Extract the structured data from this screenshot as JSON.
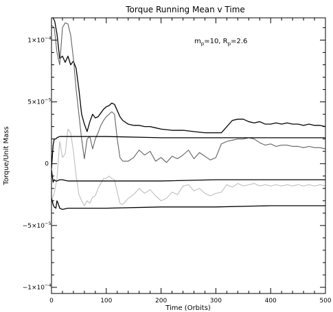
{
  "chart_data": {
    "type": "line",
    "title": "Torque Running Mean v Time",
    "xlabel": "Time (Orbits)",
    "ylabel": "Torque/Unit Mass",
    "xlim": [
      0,
      500
    ],
    "ylim": [
      -0.000105,
      0.000118
    ],
    "grid": false,
    "annotation": {
      "m_label": "m",
      "m_sub": "p",
      "m_value": "=10, R",
      "r_sub": "p",
      "r_value": "=2.6"
    },
    "x_ticks": [
      {
        "value": 0,
        "label": "0"
      },
      {
        "value": 100,
        "label": "100"
      },
      {
        "value": 200,
        "label": "200"
      },
      {
        "value": 300,
        "label": "300"
      },
      {
        "value": 400,
        "label": "400"
      },
      {
        "value": 500,
        "label": "500"
      }
    ],
    "y_ticks": [
      {
        "value": 0.0001,
        "mantissa": "1×10",
        "exp": "−4"
      },
      {
        "value": 5e-05,
        "mantissa": "5×10",
        "exp": "−5"
      },
      {
        "value": 0,
        "mantissa": "0",
        "exp": ""
      },
      {
        "value": -5e-05,
        "mantissa": "−5×10",
        "exp": "−5"
      },
      {
        "value": -0.0001,
        "mantissa": "−1×10",
        "exp": "−4"
      }
    ],
    "series": [
      {
        "color": "#000000",
        "width": 1.3,
        "x": [
          0,
          3,
          6,
          10,
          15,
          20,
          25,
          30,
          35,
          40,
          45,
          50,
          55,
          60,
          65,
          70,
          75,
          80,
          85,
          90,
          95,
          100,
          105,
          110,
          115,
          120,
          125,
          130,
          140,
          150,
          160,
          170,
          180,
          190,
          200,
          220,
          240,
          260,
          280,
          300,
          310,
          320,
          330,
          340,
          350,
          360,
          370,
          380,
          390,
          400,
          410,
          420,
          430,
          440,
          450,
          460,
          470,
          480,
          490,
          500
        ],
        "y": [
          0.000118,
          0.000118,
          0.000115,
          0.000105,
          8.5e-05,
          8.7e-05,
          8.2e-05,
          8.7e-05,
          8e-05,
          8.3e-05,
          7.7e-05,
          6e-05,
          4e-05,
          3.2e-05,
          2.6e-05,
          3.4e-05,
          4e-05,
          3.7e-05,
          3.8e-05,
          4.1e-05,
          4.4e-05,
          4.6e-05,
          4.7e-05,
          4.9e-05,
          4.8e-05,
          4.3e-05,
          3.8e-05,
          3.5e-05,
          3.2e-05,
          3.1e-05,
          3.1e-05,
          3e-05,
          3e-05,
          2.9e-05,
          2.8e-05,
          2.7e-05,
          2.7e-05,
          2.6e-05,
          2.5e-05,
          2.5e-05,
          2.5e-05,
          3e-05,
          3.5e-05,
          3.6e-05,
          3.6e-05,
          3.4e-05,
          3.3e-05,
          3.4e-05,
          3.2e-05,
          3.2e-05,
          3.3e-05,
          3.2e-05,
          3.3e-05,
          3.2e-05,
          3.2e-05,
          3.1e-05,
          3.2e-05,
          3.1e-05,
          3.1e-05,
          3e-05
        ]
      },
      {
        "color": "#606060",
        "width": 1.1,
        "x": [
          0,
          5,
          10,
          15,
          20,
          25,
          30,
          35,
          40,
          45,
          50,
          55,
          60,
          65,
          70,
          75,
          80,
          85,
          90,
          95,
          100,
          105,
          110,
          115,
          120,
          125,
          130,
          140,
          150,
          160,
          170,
          180,
          190,
          200,
          210,
          220,
          230,
          240,
          250,
          260,
          270,
          280,
          290,
          300,
          310,
          320,
          330,
          340,
          350,
          360,
          370,
          380,
          390,
          400,
          410,
          420,
          430,
          440,
          450,
          460,
          470,
          480,
          490,
          500
        ],
        "y": [
          0.000112,
          0.00011,
          9e-05,
          8e-05,
          0.00011,
          0.000114,
          0.000113,
          0.000104,
          8.5e-05,
          6e-05,
          4e-05,
          2e-05,
          4e-06,
          2e-05,
          2.2e-05,
          1.2e-05,
          2e-05,
          2.5e-05,
          3.1e-05,
          3.5e-05,
          3.8e-05,
          4e-05,
          4.2e-05,
          4e-05,
          2e-05,
          5e-06,
          2e-06,
          2e-06,
          5e-06,
          1.1e-05,
          7e-06,
          1e-05,
          2e-06,
          5e-06,
          1e-06,
          6e-06,
          4e-06,
          7e-06,
          1.1e-05,
          4e-06,
          9e-06,
          6e-06,
          3e-06,
          5e-06,
          1.6e-05,
          1.8e-05,
          1.9e-05,
          2e-05,
          2e-05,
          2.1e-05,
          2e-05,
          1.7e-05,
          1.5e-05,
          1.6e-05,
          1.4e-05,
          1.5e-05,
          1.5e-05,
          1.4e-05,
          1.4e-05,
          1.3e-05,
          1.4e-05,
          1.3e-05,
          1.3e-05,
          1.2e-05
        ]
      },
      {
        "color": "#bdbdbd",
        "width": 1.1,
        "x": [
          0,
          5,
          10,
          15,
          20,
          25,
          30,
          35,
          40,
          45,
          50,
          55,
          60,
          65,
          70,
          75,
          80,
          85,
          90,
          95,
          100,
          105,
          110,
          115,
          120,
          125,
          130,
          140,
          150,
          160,
          170,
          180,
          190,
          200,
          210,
          220,
          230,
          240,
          250,
          260,
          270,
          280,
          290,
          300,
          310,
          320,
          330,
          340,
          350,
          360,
          370,
          380,
          390,
          400,
          410,
          420,
          430,
          440,
          450,
          460,
          470,
          480,
          490,
          500
        ],
        "y": [
          -3e-05,
          -2.4e-05,
          -1.2e-05,
          1.8e-05,
          5e-06,
          8e-06,
          2.8e-05,
          2.5e-05,
          1e-05,
          -1e-05,
          -2.5e-05,
          -3e-05,
          -3.4e-05,
          -3e-05,
          -3.2e-05,
          -2.7e-05,
          -2.6e-05,
          -2e-05,
          -1.6e-05,
          -1.2e-05,
          -1.2e-05,
          -1e-05,
          -1.2e-05,
          -1.3e-05,
          -2.3e-05,
          -3.2e-05,
          -3.3e-05,
          -2.8e-05,
          -2.5e-05,
          -2e-05,
          -2.4e-05,
          -2.1e-05,
          -2.6e-05,
          -3e-05,
          -2.8e-05,
          -2.3e-05,
          -2.5e-05,
          -1.8e-05,
          -1.7e-05,
          -2.2e-05,
          -2e-05,
          -2.4e-05,
          -2.6e-05,
          -2.4e-05,
          -2.3e-05,
          -1.7e-05,
          -1.9e-05,
          -1.6e-05,
          -1.8e-05,
          -1.7e-05,
          -1.6e-05,
          -1.8e-05,
          -1.7e-05,
          -1.8e-05,
          -1.7e-05,
          -1.8e-05,
          -1.7e-05,
          -1.8e-05,
          -1.7e-05,
          -1.8e-05,
          -1.7e-05,
          -1.8e-05,
          -1.7e-05,
          -1.8e-05
        ]
      },
      {
        "color": "#000000",
        "width": 1.3,
        "x": [
          0,
          3,
          5,
          8,
          10,
          15,
          20,
          30,
          50,
          100,
          200,
          300,
          400,
          500
        ],
        "y": [
          -4e-06,
          1.5e-05,
          2e-05,
          2e-05,
          2.1e-05,
          2.2e-05,
          2.2e-05,
          2.2e-05,
          2.2e-05,
          2.2e-05,
          2.1e-05,
          2.1e-05,
          2.1e-05,
          2.1e-05
        ]
      },
      {
        "color": "#000000",
        "width": 1.3,
        "x": [
          0,
          3,
          5,
          8,
          10,
          15,
          20,
          30,
          50,
          100,
          200,
          300,
          400,
          500
        ],
        "y": [
          -5e-06,
          -1.5e-05,
          -1.3e-05,
          -1.4e-05,
          -1.4e-05,
          -1.3e-05,
          -1.3e-05,
          -1.4e-05,
          -1.4e-05,
          -1.4e-05,
          -1.4e-05,
          -1.3e-05,
          -1.3e-05,
          -1.3e-05
        ]
      },
      {
        "color": "#000000",
        "width": 1.3,
        "x": [
          0,
          3,
          5,
          8,
          10,
          12,
          15,
          20,
          30,
          50,
          100,
          200,
          300,
          400,
          500
        ],
        "y": [
          -2.8e-05,
          -3.3e-05,
          -3.5e-05,
          -3.6e-05,
          -3e-05,
          -3.2e-05,
          -3.6e-05,
          -3.7e-05,
          -3.6e-05,
          -3.6e-05,
          -3.6e-05,
          -3.5e-05,
          -3.5e-05,
          -3.4e-05,
          -3.4e-05
        ]
      }
    ]
  }
}
